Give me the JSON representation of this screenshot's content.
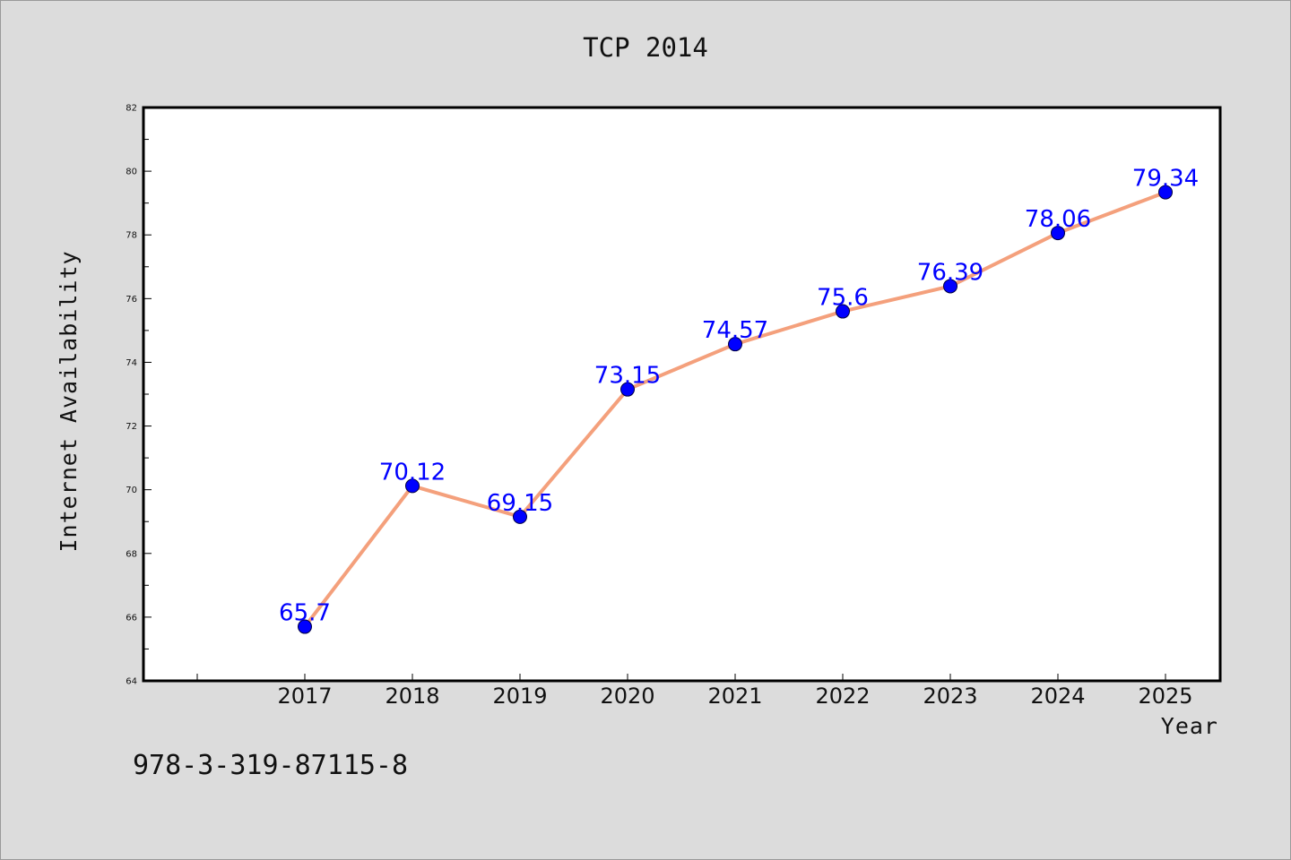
{
  "footnote": "978-3-319-87115-8",
  "colors": {
    "background": "#dcdcdc",
    "plot_background": "#ffffff",
    "line": "#f4a07c",
    "marker": "#0000ff",
    "data_label": "#0000ff"
  },
  "chart_data": {
    "type": "line",
    "title": "TCP 2014",
    "xlabel": "Year",
    "ylabel": "Internet Availability",
    "categories": [
      "2017",
      "2018",
      "2019",
      "2020",
      "2021",
      "2022",
      "2023",
      "2024",
      "2025"
    ],
    "series": [
      {
        "values": [
          65.7,
          70.12,
          69.15,
          73.15,
          74.57,
          75.6,
          76.39,
          78.06,
          79.34
        ],
        "data_labels": [
          "65.7",
          "70.12",
          "69.15",
          "73.15",
          "74.57",
          "75.6",
          "76.39",
          "78.06",
          "79.34"
        ]
      }
    ],
    "ylim": [
      64,
      82
    ],
    "yticks": [
      "64",
      "66",
      "68",
      "70",
      "72",
      "74",
      "76",
      "78",
      "80",
      "82"
    ],
    "grid": false,
    "legend": "none"
  }
}
